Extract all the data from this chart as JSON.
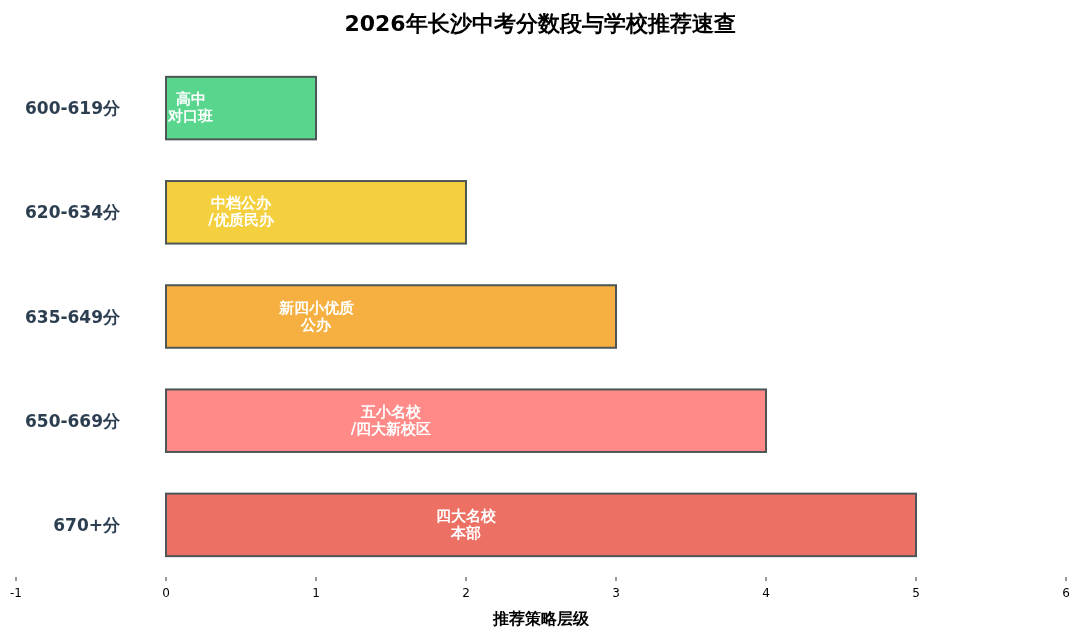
{
  "chart_data": {
    "type": "bar",
    "orientation": "horizontal",
    "title": "2026年长沙中考分数段与学校推荐速查",
    "xlabel": "推荐策略层级",
    "categories": [
      "600-619分",
      "620-634分",
      "635-649分",
      "650-669分",
      "670+分"
    ],
    "values": [
      1,
      2,
      3,
      4,
      5
    ],
    "colors": [
      "#58d68d",
      "#f4d03f",
      "#f5b041",
      "#ff8a87",
      "#ec7063"
    ],
    "value_labels": [
      "高中对口班",
      "中档公办/优质民办",
      "新四小优质公办",
      "五小名校/四大新校区",
      "四大名校本部"
    ],
    "xlim": [
      -1,
      6
    ],
    "xticks": [
      -1,
      0,
      1,
      2,
      3,
      4,
      5,
      6
    ]
  }
}
